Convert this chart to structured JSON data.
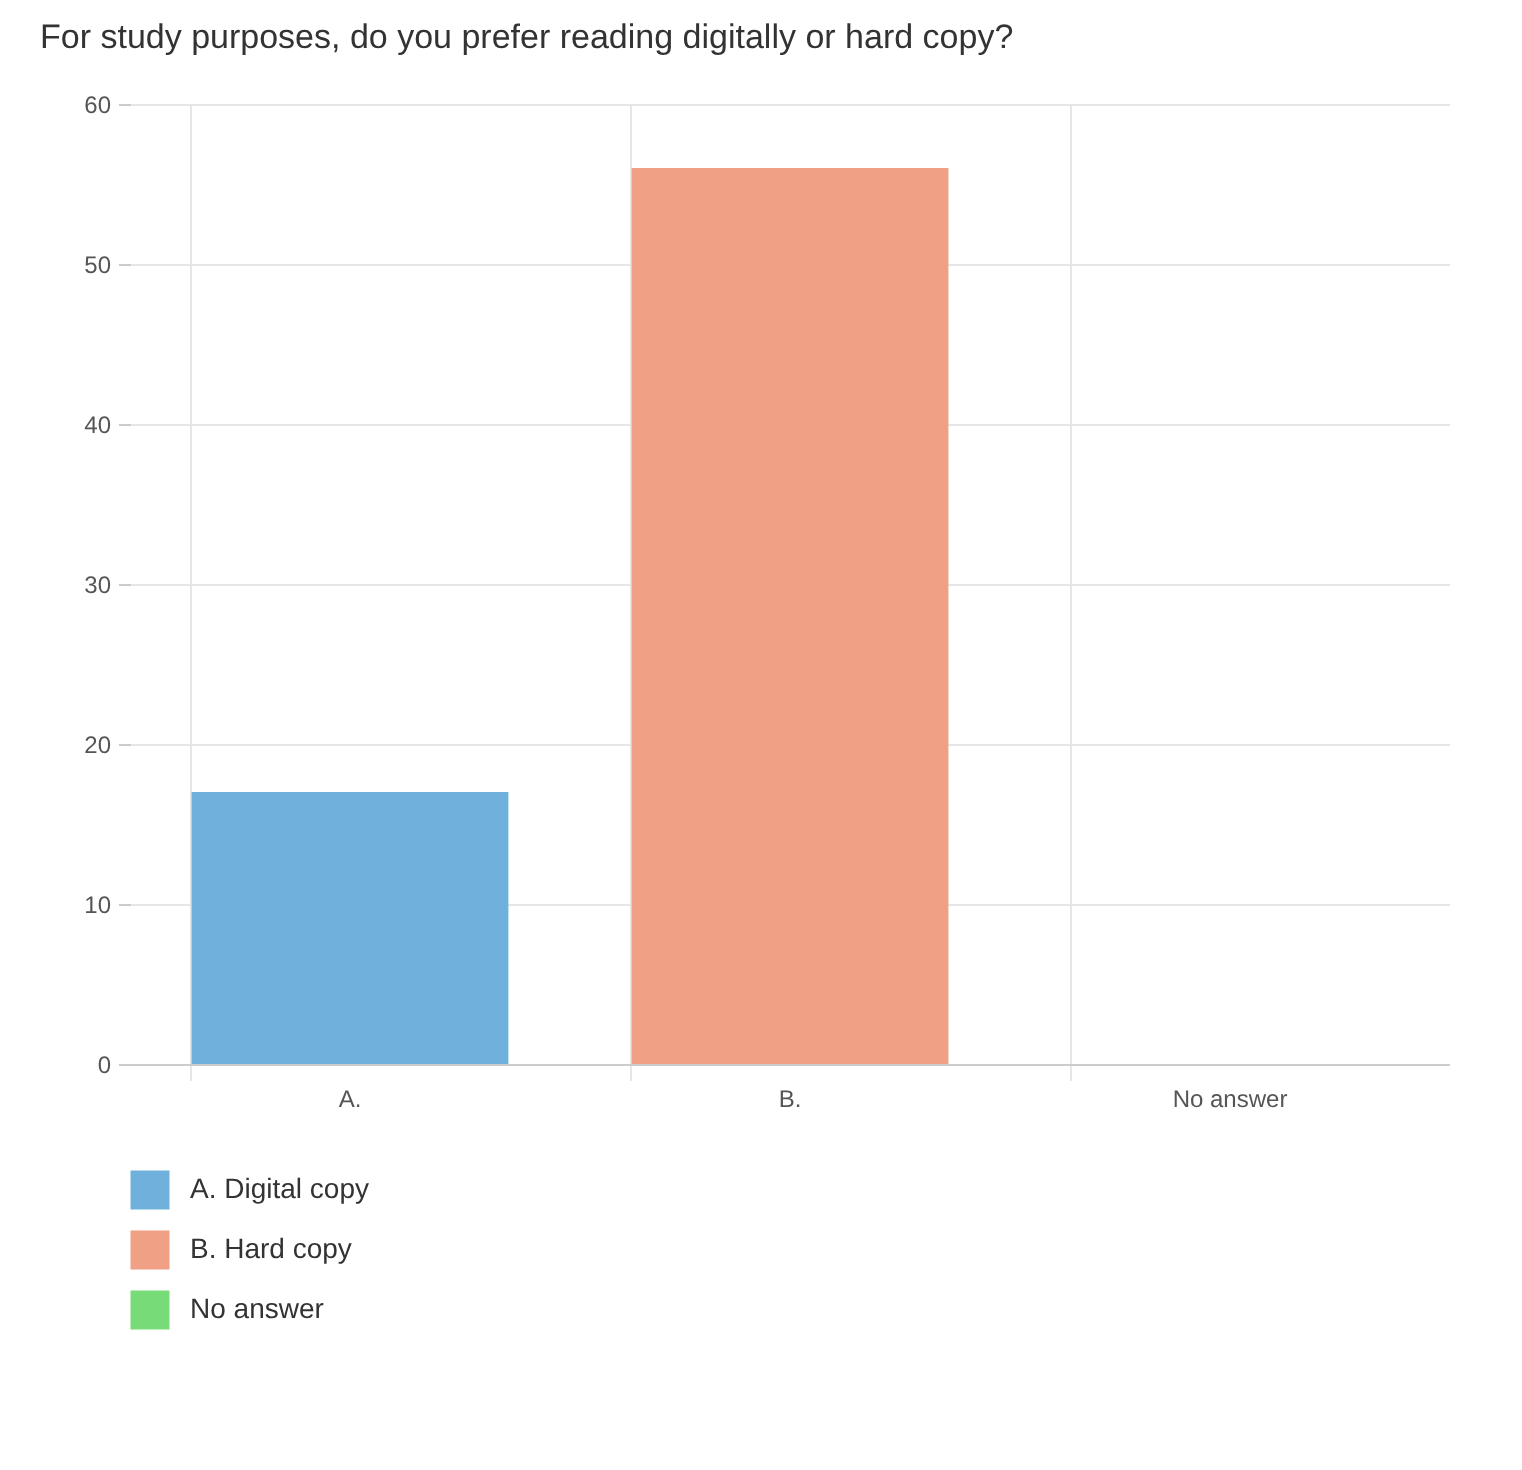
{
  "chart_data": {
    "type": "bar",
    "title": "For study purposes, do you prefer reading digitally or hard copy?",
    "categories": [
      "A.",
      "B.",
      "No answer"
    ],
    "series": [
      {
        "name": "A. Digital copy",
        "color": "#6fb1dc",
        "values": [
          17,
          null,
          null
        ]
      },
      {
        "name": "B. Hard copy",
        "color": "#f0a085",
        "values": [
          null,
          56,
          null
        ]
      },
      {
        "name": "No answer",
        "color": "#77db77",
        "values": [
          null,
          null,
          0
        ]
      }
    ],
    "ylim": [
      0,
      60
    ],
    "yticks": [
      0,
      10,
      20,
      30,
      40,
      50,
      60
    ],
    "grid": true,
    "legend": "bottom left"
  }
}
